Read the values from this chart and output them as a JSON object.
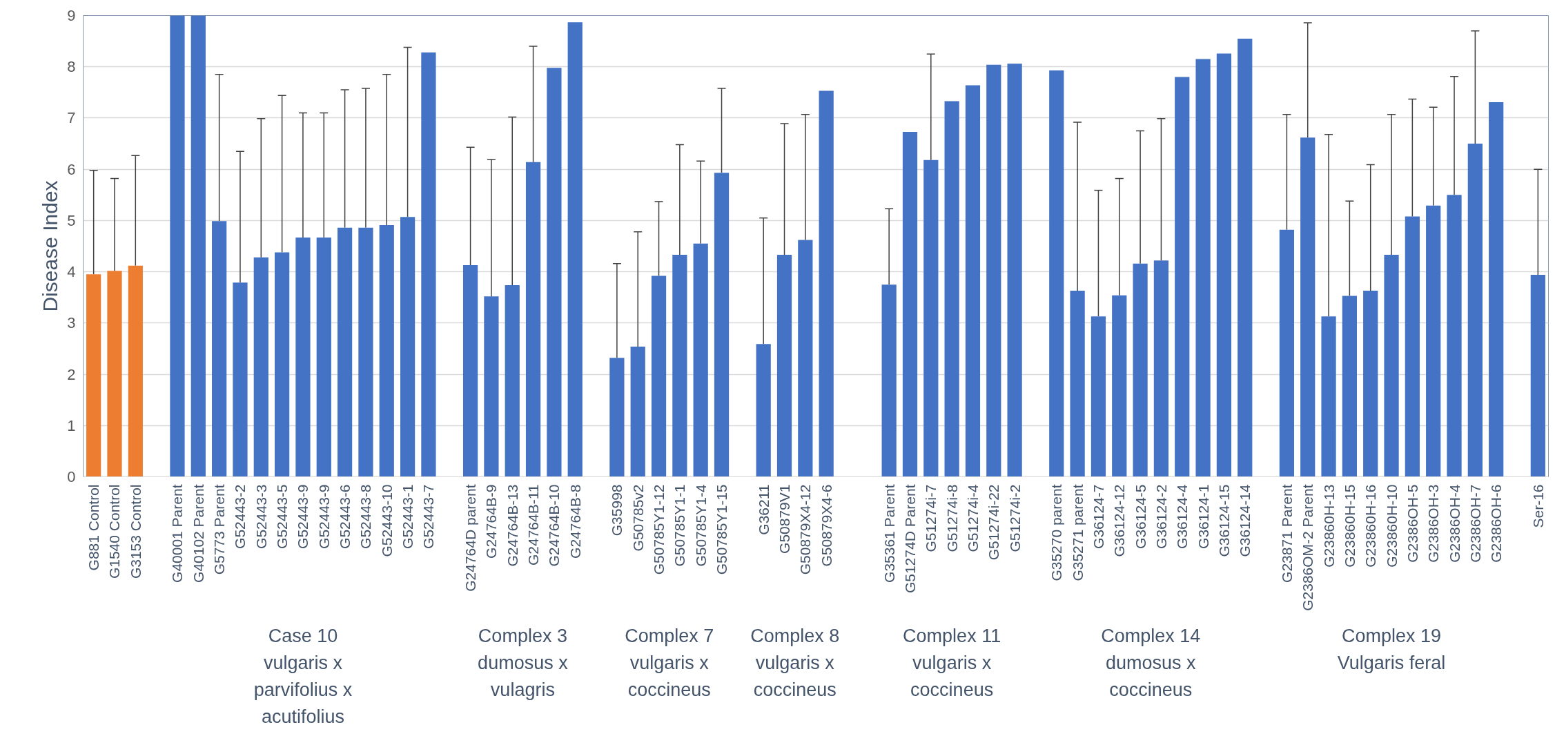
{
  "chart_data": {
    "type": "bar",
    "ylabel": "Disease Index",
    "ylim": [
      0,
      9
    ],
    "yticks": [
      0,
      1,
      2,
      3,
      4,
      5,
      6,
      7,
      8,
      9
    ],
    "grid": "y",
    "categories": [
      "G881 Control",
      "G1540 Control",
      "G3153 Control",
      null,
      "G40001 Parent",
      "G40102 Parent",
      "G5773 Parent",
      "G52443-2",
      "G52443-3",
      "G52443-5",
      "G52443-9",
      "G52443-9",
      "G52443-6",
      "G52443-8",
      "G52443-10",
      "G52443-1",
      "G52443-7",
      null,
      "G24764D parent",
      "G24764B-9",
      "G24764B-13",
      "G24764B-11",
      "G24764B-10",
      "G24764B-8",
      null,
      "G35998",
      "G50785v2",
      "G50785Y1-12",
      "G50785Y1-1",
      "G50785Y1-4",
      "G50785Y1-15",
      null,
      "G36211",
      "G50879V1",
      "G50879X4-12",
      "G50879X4-6",
      null,
      null,
      "G35361 Parent",
      "G51274D Parent",
      "G51274i-7",
      "G51274i-8",
      "G51274i-4",
      "G51274i-22",
      "G51274i-2",
      null,
      "G35270 parent",
      "G35271 parent",
      "G36124-7",
      "G36124-12",
      "G36124-5",
      "G36124-2",
      "G36124-4",
      "G36124-1",
      "G36124-15",
      "G36124-14",
      null,
      "G23871 Parent",
      "G2386OM-2 Parent",
      "G23860H-13",
      "G23860H-15",
      "G23860H-16",
      "G23860H-10",
      "G2386OH-5",
      "G2386OH-3",
      "G2386OH-4",
      "G2386OH-7",
      "G2386OH-6",
      null,
      "Ser-16"
    ],
    "values": [
      3.95,
      4.02,
      4.12,
      null,
      9,
      9,
      4.99,
      3.79,
      4.28,
      4.38,
      4.67,
      4.67,
      4.86,
      4.86,
      4.91,
      5.07,
      8.28,
      null,
      4.13,
      3.52,
      3.74,
      6.14,
      7.98,
      8.87,
      null,
      2.32,
      2.54,
      3.92,
      4.33,
      4.55,
      5.93,
      null,
      2.59,
      4.33,
      4.62,
      7.53,
      null,
      null,
      3.75,
      6.73,
      6.18,
      7.33,
      7.64,
      8.04,
      8.06,
      null,
      7.93,
      3.63,
      3.13,
      3.54,
      4.16,
      4.22,
      7.8,
      8.15,
      8.26,
      8.55,
      null,
      4.82,
      6.62,
      3.13,
      3.53,
      3.63,
      4.33,
      5.08,
      5.29,
      5.5,
      6.5,
      7.31,
      null,
      3.94
    ],
    "errors": [
      [
        3.95,
        5.98
      ],
      [
        4.02,
        5.82
      ],
      [
        4.12,
        6.27
      ],
      null,
      null,
      null,
      [
        4.99,
        7.85
      ],
      [
        3.79,
        6.35
      ],
      [
        4.28,
        6.99
      ],
      [
        4.38,
        7.44
      ],
      [
        4.67,
        7.1
      ],
      [
        4.67,
        7.1
      ],
      [
        4.86,
        7.55
      ],
      [
        4.86,
        7.58
      ],
      [
        4.91,
        7.85
      ],
      [
        5.07,
        8.38
      ],
      null,
      null,
      [
        4.13,
        6.43
      ],
      [
        3.52,
        6.19
      ],
      [
        3.74,
        7.02
      ],
      [
        6.14,
        8.4
      ],
      null,
      null,
      null,
      [
        2.32,
        4.16
      ],
      [
        2.54,
        4.78
      ],
      [
        3.92,
        5.37
      ],
      [
        4.33,
        6.48
      ],
      [
        4.55,
        6.16
      ],
      [
        5.93,
        7.58
      ],
      null,
      [
        2.59,
        5.05
      ],
      [
        4.33,
        6.89
      ],
      [
        4.62,
        7.07
      ],
      null,
      null,
      null,
      [
        3.75,
        5.23
      ],
      null,
      [
        6.18,
        8.25
      ],
      null,
      null,
      null,
      null,
      null,
      null,
      [
        3.63,
        6.92
      ],
      [
        3.13,
        5.59
      ],
      [
        3.54,
        5.82
      ],
      [
        4.16,
        6.75
      ],
      [
        4.22,
        6.99
      ],
      null,
      null,
      null,
      null,
      null,
      [
        4.82,
        7.07
      ],
      [
        6.62,
        8.86
      ],
      [
        3.13,
        6.68
      ],
      [
        3.53,
        5.38
      ],
      [
        3.63,
        6.09
      ],
      [
        4.33,
        7.07
      ],
      [
        5.08,
        7.37
      ],
      [
        5.29,
        7.21
      ],
      [
        5.5,
        7.81
      ],
      [
        6.5,
        8.7
      ],
      null,
      null,
      [
        3.94,
        6.0
      ]
    ],
    "colors": [
      "#ed7d31",
      "#ed7d31",
      "#ed7d31",
      "#4472c4",
      "#4472c4",
      "#4472c4",
      "#4472c4",
      "#4472c4",
      "#4472c4",
      "#4472c4",
      "#4472c4",
      "#4472c4",
      "#4472c4",
      "#4472c4",
      "#4472c4",
      "#4472c4",
      "#4472c4",
      "#4472c4",
      "#4472c4",
      "#4472c4",
      "#4472c4",
      "#4472c4",
      "#4472c4",
      "#4472c4",
      "#4472c4",
      "#4472c4",
      "#4472c4",
      "#4472c4",
      "#4472c4",
      "#4472c4",
      "#4472c4",
      "#4472c4",
      "#4472c4",
      "#4472c4",
      "#4472c4",
      "#4472c4",
      "#4472c4",
      "#4472c4",
      "#4472c4",
      "#4472c4",
      "#4472c4",
      "#4472c4",
      "#4472c4",
      "#4472c4",
      "#4472c4",
      "#4472c4",
      "#4472c4",
      "#4472c4",
      "#4472c4",
      "#4472c4",
      "#4472c4",
      "#4472c4",
      "#4472c4",
      "#4472c4",
      "#4472c4",
      "#4472c4",
      "#4472c4",
      "#4472c4",
      "#4472c4",
      "#4472c4",
      "#4472c4",
      "#4472c4",
      "#4472c4",
      "#4472c4",
      "#4472c4",
      "#4472c4",
      "#4472c4",
      "#4472c4",
      "#4472c4",
      "#4472c4"
    ],
    "annotations": [
      "Case 10\nvulgaris x\nparvifolius x\nacutifolius",
      "Complex 3\ndumosus x\nvulagris",
      "Complex 7\nvulgaris x\ncoccineus",
      "Complex 8\nvulgaris x\ncoccineus",
      "Complex 11\nvulgaris x\ncoccineus",
      "Complex 14\ndumosus x\ncoccineus",
      "Complex 19\nVulgaris feral"
    ]
  }
}
